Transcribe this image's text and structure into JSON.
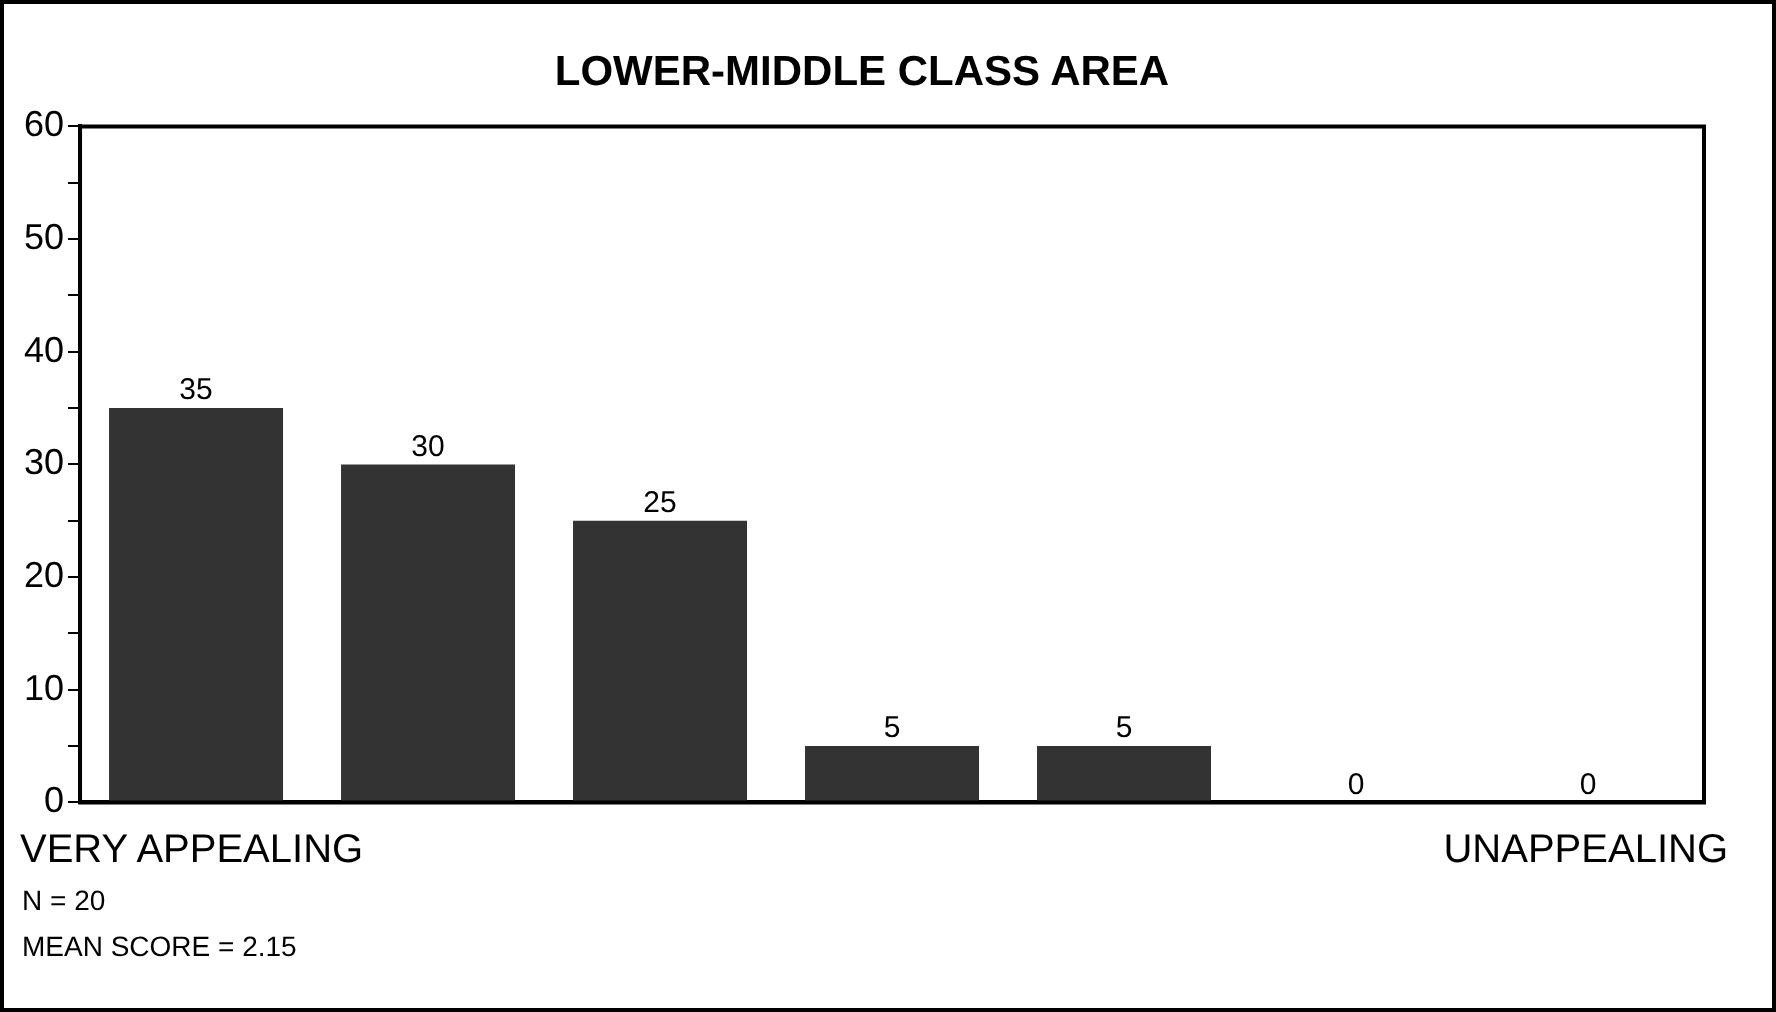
{
  "chart_data": {
    "type": "bar",
    "title": "LOWER-MIDDLE CLASS AREA",
    "categories": [
      null,
      null,
      null,
      null,
      null,
      null,
      null
    ],
    "values": [
      35,
      30,
      25,
      5,
      5,
      0,
      0
    ],
    "color": "#333333",
    "ylim": [
      0,
      60
    ],
    "yticks": [
      0,
      {
        "value": 5,
        "label": null
      },
      10,
      {
        "value": 15,
        "label": null
      },
      20,
      {
        "value": 25,
        "label": null
      },
      30,
      {
        "value": 35,
        "label": null
      },
      40,
      {
        "value": 45,
        "label": null
      },
      50,
      {
        "value": 55,
        "label": null
      },
      60
    ],
    "tick_labels": "y",
    "grid": false,
    "legend": false,
    "data_labels": true,
    "annotations": [
      "VERY APPEALING",
      "UNAPPEALING",
      "N = 20",
      "MEAN SCORE = 2.15"
    ]
  }
}
